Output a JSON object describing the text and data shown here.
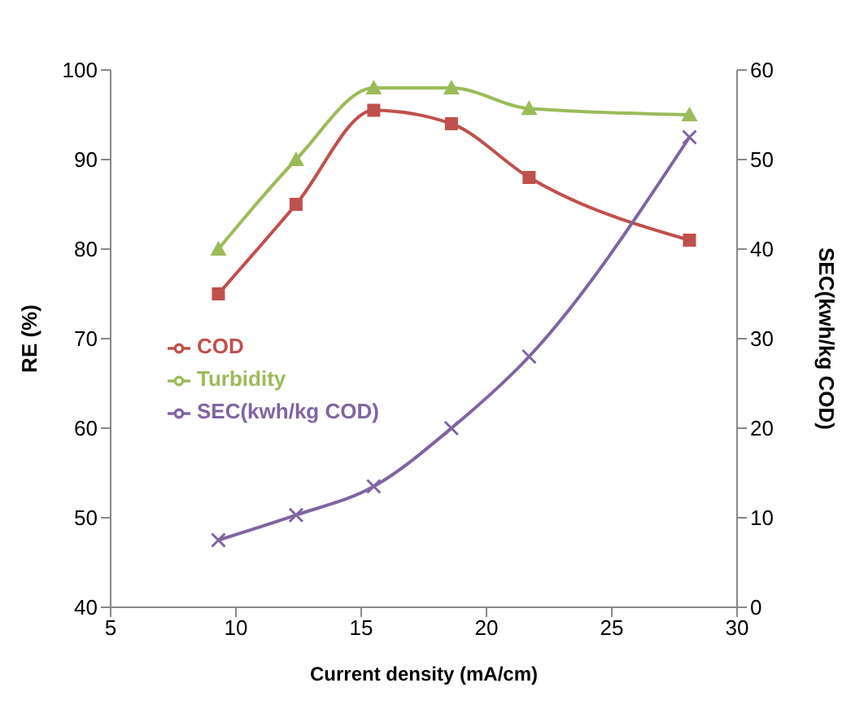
{
  "chart_data": {
    "type": "line",
    "xlabel": "Current density (mA/cm)",
    "ylabel": "RE (%)",
    "y2label": "SEC(kwh/kg COD)",
    "x": [
      9.3,
      12.4,
      15.5,
      18.6,
      21.7,
      28.1
    ],
    "xlim": [
      5,
      30
    ],
    "xticks": [
      5,
      10,
      15,
      20,
      25,
      30
    ],
    "ylim": [
      40,
      100
    ],
    "yticks": [
      40,
      50,
      60,
      70,
      80,
      90,
      100
    ],
    "y2lim": [
      0,
      60
    ],
    "y2ticks": [
      0,
      10,
      20,
      30,
      40,
      50,
      60
    ],
    "series": [
      {
        "name": "COD",
        "color": "#c0504d",
        "marker": "square",
        "values": [
          75,
          85,
          95.5,
          94,
          88,
          81
        ]
      },
      {
        "name": "Turbidity",
        "color": "#9bbb59",
        "marker": "triangle",
        "values": [
          80,
          90,
          98,
          98,
          95.7,
          95
        ]
      },
      {
        "name": "SEC(kwh/kg COD)",
        "color": "#8064a2",
        "marker": "cross",
        "axis": "y2",
        "values": [
          7.5,
          10.3,
          13.5,
          20,
          28,
          52.5
        ]
      }
    ],
    "legend": "left",
    "grid": false
  }
}
